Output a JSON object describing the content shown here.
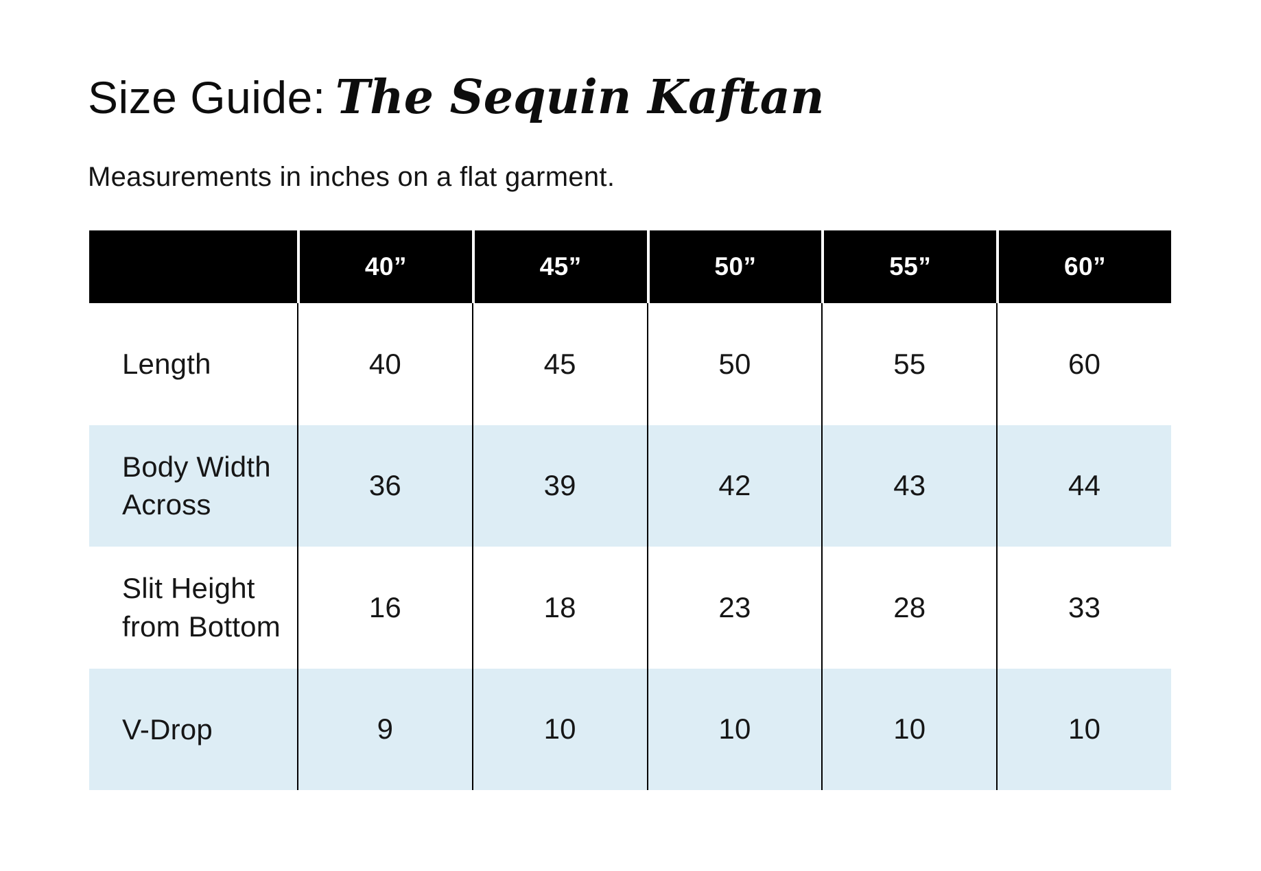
{
  "title": {
    "regular": "Size Guide:",
    "emphasis": "The Sequin Kaftan"
  },
  "subtitle": "Measurements in inches on a flat garment.",
  "table": {
    "corner_label": "",
    "columns": [
      "40”",
      "45”",
      "50”",
      "55”",
      "60”"
    ],
    "rows": [
      {
        "label": "Length",
        "values": [
          "40",
          "45",
          "50",
          "55",
          "60"
        ]
      },
      {
        "label": "Body Width Across",
        "values": [
          "36",
          "39",
          "42",
          "43",
          "44"
        ]
      },
      {
        "label": "Slit Height from Bottom",
        "values": [
          "16",
          "18",
          "23",
          "28",
          "33"
        ]
      },
      {
        "label": "V-Drop",
        "values": [
          "9",
          "10",
          "10",
          "10",
          "10"
        ]
      }
    ]
  },
  "colors": {
    "header_bg": "#000000",
    "header_text": "#ffffff",
    "stripe_bg": "#ddedf5",
    "text": "#141414"
  }
}
